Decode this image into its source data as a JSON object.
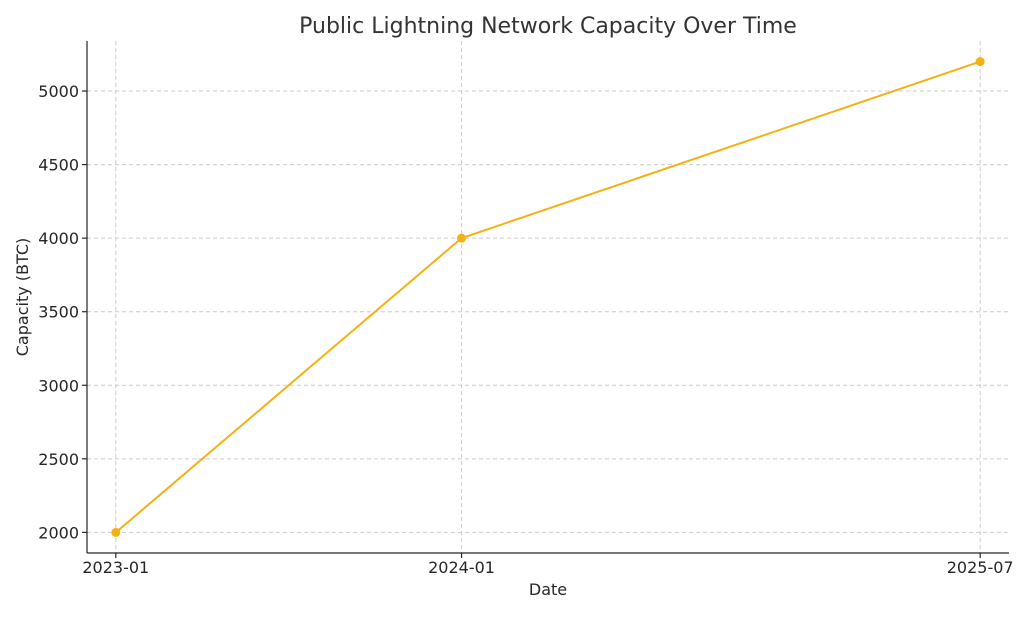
{
  "chart_data": {
    "type": "line",
    "title": "Public Lightning Network Capacity Over Time",
    "xlabel": "Date",
    "ylabel": "Capacity (BTC)",
    "x": [
      "2023-01",
      "2024-01",
      "2025-07"
    ],
    "x_ticks": [
      "2023-01",
      "2024-01",
      "2025-07"
    ],
    "series": [
      {
        "values": [
          2000,
          4000,
          5200
        ],
        "color": "#f5b014"
      }
    ],
    "y_ticks": [
      2000,
      2500,
      3000,
      3500,
      4000,
      4500,
      5000
    ],
    "ylim": [
      1860,
      5340
    ],
    "xlim": [
      "2022-12",
      "2025-08"
    ],
    "grid": true,
    "marker": "circle"
  }
}
